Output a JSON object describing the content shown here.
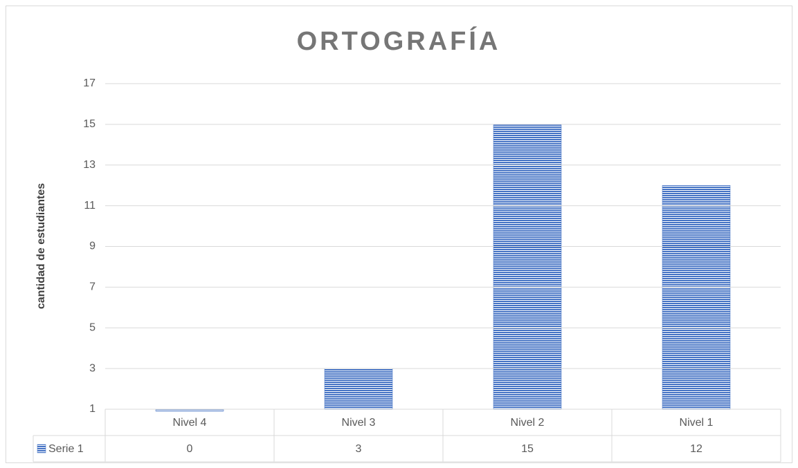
{
  "chart_data": {
    "type": "bar",
    "title": "ORTOGRAFÍA",
    "y_label": "cantidad de estudiantes",
    "categories": [
      "Nivel 4",
      "Nivel 3",
      "Nivel 2",
      "Nivel 1"
    ],
    "series": [
      {
        "name": "Serie 1",
        "color": "#4472c4",
        "values": [
          0,
          3,
          15,
          12
        ]
      }
    ],
    "ylim": [
      1,
      17
    ],
    "yticks": [
      1,
      3,
      5,
      7,
      9,
      11,
      13,
      15,
      17
    ],
    "grid": true,
    "data_table": true
  }
}
